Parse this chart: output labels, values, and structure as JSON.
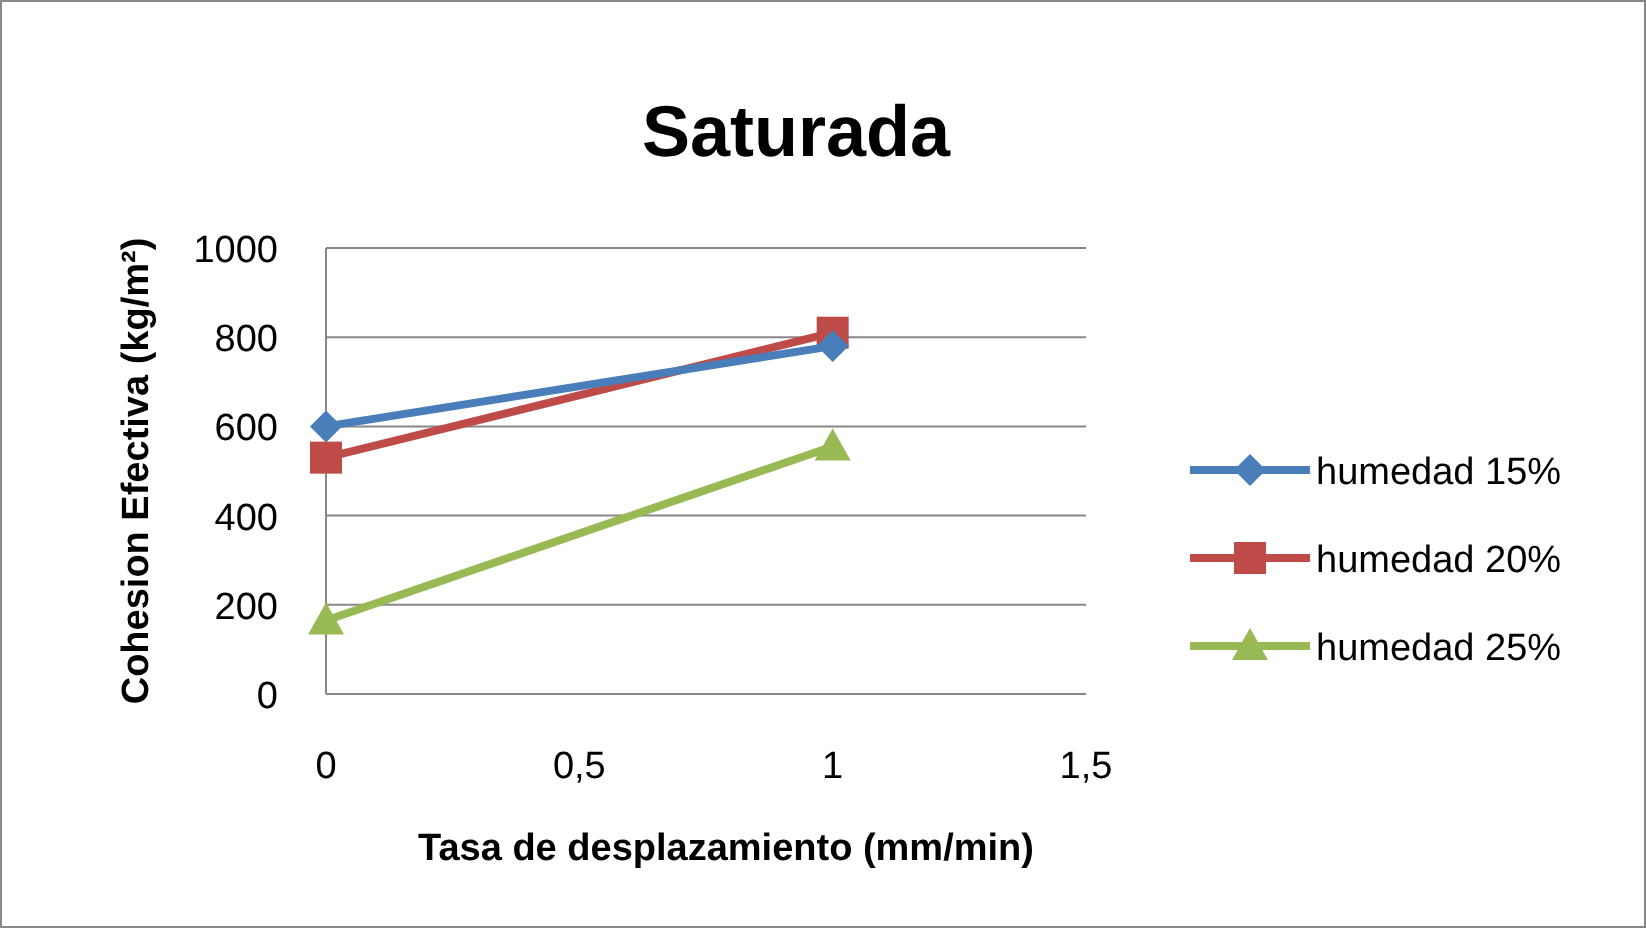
{
  "chart_data": {
    "type": "line",
    "title": "Saturada",
    "xlabel": "Tasa de desplazamiento (mm/min)",
    "ylabel": "Cohesion Efectiva (kg/m²)",
    "x": [
      0,
      1
    ],
    "series": [
      {
        "name": "humedad 15%",
        "color": "#4a7ebb",
        "values": [
          600,
          780
        ],
        "marker": "diamond"
      },
      {
        "name": "humedad 20%",
        "color": "#be4b48",
        "values": [
          530,
          810
        ],
        "marker": "square"
      },
      {
        "name": "humedad 25%",
        "color": "#98b954",
        "values": [
          165,
          555
        ],
        "marker": "triangle"
      }
    ],
    "xlim": [
      0,
      1.5
    ],
    "xticks": [
      0,
      {
        "value": 0.5,
        "label": "0,5"
      },
      1,
      {
        "value": 1.5,
        "label": "1,5"
      }
    ],
    "ylim": [
      0,
      1000
    ],
    "yticks": [
      0,
      200,
      400,
      600,
      800,
      1000
    ],
    "grid": "y",
    "legend": "right",
    "line_style": "solid"
  }
}
